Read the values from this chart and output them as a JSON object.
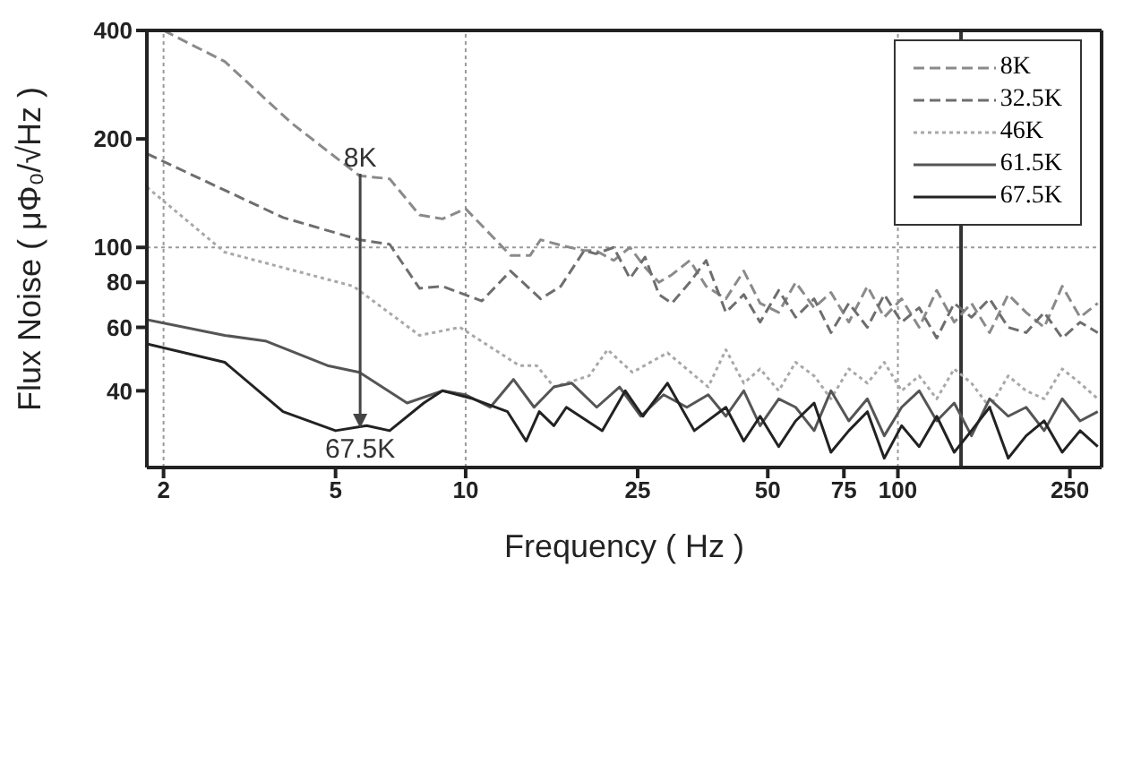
{
  "chart_data": {
    "type": "line",
    "xlabel": "Frequency ( Hz )",
    "ylabel": "Flux Noise ( μΦ₀/√Hz )",
    "log": "xy",
    "xlim": [
      1.83,
      296
    ],
    "xticks": [
      2,
      5,
      10,
      25,
      50,
      75,
      100,
      250
    ],
    "ylim": [
      24.5,
      400
    ],
    "yticks": [
      40,
      60,
      80,
      100,
      200,
      400
    ],
    "grid": false,
    "legend": "top right",
    "marker": "none",
    "series": [
      {
        "name": "8K",
        "color": "#8a8a8a",
        "line_style": "dashed",
        "x": [
          2,
          2.77,
          3.96,
          5.68,
          6.67,
          7.82,
          8.84,
          10,
          12.7,
          14.1,
          14.9,
          16.8,
          18.8,
          20,
          22,
          24,
          26,
          28,
          30,
          33,
          36,
          40,
          44,
          48,
          53,
          58,
          64,
          70,
          77,
          85,
          93,
          102,
          112,
          123,
          135,
          148,
          163,
          180,
          198,
          218,
          240,
          264,
          290
        ],
        "values": [
          400,
          328,
          221,
          158,
          155,
          123,
          120,
          128,
          95,
          95,
          105,
          101,
          98,
          98,
          92,
          100,
          88,
          80,
          84,
          92,
          78,
          72,
          86,
          70,
          66,
          80,
          68,
          75,
          62,
          78,
          64,
          72,
          60,
          76,
          62,
          70,
          58,
          74,
          66,
          60,
          78,
          64,
          70
        ]
      },
      {
        "name": "32.5K",
        "color": "#6e6e6e",
        "line_style": "dashed",
        "x": [
          1.83,
          3.78,
          5.68,
          6.67,
          7.82,
          8.84,
          10.9,
          12.7,
          14.9,
          16.6,
          18.8,
          20,
          22,
          24,
          26,
          28,
          30,
          33,
          36,
          40,
          44,
          48,
          53,
          58,
          64,
          70,
          77,
          85,
          93,
          102,
          112,
          123,
          135,
          148,
          163,
          180,
          198,
          218,
          240,
          264,
          290
        ],
        "values": [
          182,
          121,
          105,
          102,
          77,
          78,
          71,
          86,
          72,
          78,
          98,
          96,
          100,
          82,
          94,
          74,
          70,
          80,
          92,
          66,
          74,
          62,
          76,
          64,
          72,
          58,
          70,
          60,
          74,
          62,
          68,
          56,
          70,
          64,
          72,
          60,
          58,
          66,
          56,
          62,
          58
        ]
      },
      {
        "name": "46K",
        "color": "#a8a8a8",
        "line_style": "dotted",
        "x": [
          1.83,
          2.77,
          5.5,
          7.82,
          9.7,
          13.3,
          14.6,
          16,
          19.3,
          21.3,
          24.3,
          29.3,
          36.4,
          40,
          44,
          48,
          53,
          58,
          64,
          70,
          77,
          85,
          93,
          102,
          112,
          123,
          135,
          148,
          163,
          180,
          198,
          218,
          240,
          264,
          290
        ],
        "values": [
          147,
          97,
          78,
          57,
          60,
          47,
          47,
          41,
          44,
          52,
          45,
          51,
          41,
          52,
          42,
          46,
          40,
          48,
          44,
          38,
          46,
          42,
          48,
          40,
          44,
          38,
          46,
          42,
          36,
          44,
          40,
          38,
          46,
          42,
          38
        ]
      },
      {
        "name": "61.5K",
        "color": "#555555",
        "line_style": "solid",
        "x": [
          1.83,
          2.77,
          3.44,
          4.79,
          5.68,
          7.32,
          8.84,
          10,
          11.4,
          12.9,
          14.4,
          16,
          17.6,
          20.1,
          22.7,
          25.4,
          28.7,
          32.5,
          36.4,
          40,
          44,
          48,
          53,
          58,
          64,
          70,
          77,
          85,
          93,
          102,
          112,
          123,
          135,
          148,
          163,
          180,
          198,
          218,
          240,
          264,
          290
        ],
        "values": [
          63,
          57,
          55,
          47,
          45,
          37,
          40,
          39,
          36,
          43,
          36,
          41,
          42,
          36,
          41,
          34,
          39,
          36,
          39,
          34,
          40,
          32,
          38,
          36,
          31,
          40,
          33,
          38,
          30,
          36,
          40,
          33,
          37,
          30,
          38,
          34,
          36,
          31,
          38,
          33,
          35
        ]
      },
      {
        "name": "67.5K",
        "color": "#222222",
        "line_style": "solid",
        "x": [
          1.83,
          2.77,
          3.78,
          5,
          5.9,
          6.67,
          8,
          8.84,
          10.4,
          12.5,
          13.8,
          14.8,
          16,
          17.1,
          20.7,
          23.4,
          25.7,
          29.3,
          33.8,
          40,
          44,
          48,
          53,
          58,
          64,
          70,
          77,
          85,
          93,
          102,
          112,
          123,
          135,
          148,
          163,
          180,
          198,
          218,
          240,
          264,
          290
        ],
        "values": [
          54,
          48,
          35,
          31,
          32,
          31,
          37,
          40,
          38,
          35,
          29,
          35,
          32,
          36,
          31,
          40,
          34,
          42,
          31,
          36,
          29,
          34,
          28,
          33,
          37,
          27,
          31,
          35,
          26,
          32,
          28,
          34,
          27,
          31,
          36,
          26,
          30,
          33,
          27,
          31,
          28
        ]
      }
    ],
    "ref_lines": [
      {
        "axis": "x",
        "value": 2,
        "color": "#9a9a9a",
        "line_style": "dotted"
      },
      {
        "axis": "x",
        "value": 10,
        "color": "#9a9a9a",
        "line_style": "dotted"
      },
      {
        "axis": "x",
        "value": 100,
        "color": "#9a9a9a",
        "line_style": "dotted"
      },
      {
        "axis": "y",
        "value": 100,
        "color": "#9a9a9a",
        "line_style": "dotted"
      },
      {
        "axis": "x",
        "value": 140,
        "color": "#333333",
        "line_style": "solid"
      }
    ],
    "annotations": [
      {
        "text": "8K",
        "x": 5.7,
        "y": 160
      },
      {
        "text": "67.5K",
        "x": 5.7,
        "y": 31.5
      }
    ]
  }
}
